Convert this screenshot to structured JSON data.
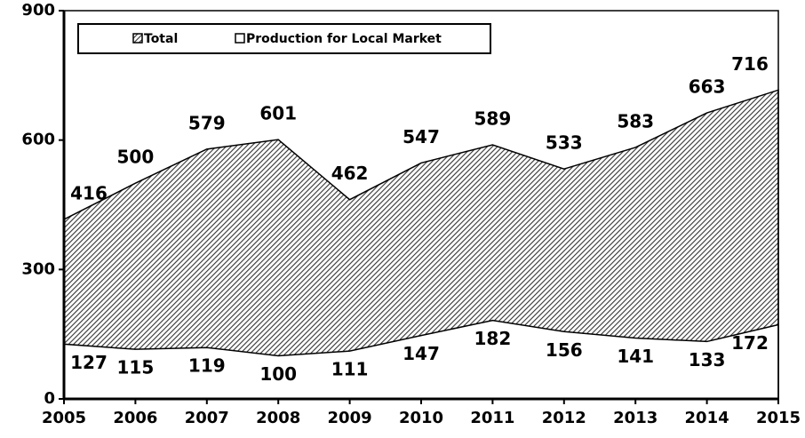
{
  "chart_data": {
    "type": "area",
    "x": [
      2005,
      2006,
      2007,
      2008,
      2009,
      2010,
      2011,
      2012,
      2013,
      2014,
      2015
    ],
    "series": [
      {
        "name": "Total",
        "color": "#333333",
        "values": [
          416,
          500,
          579,
          601,
          462,
          547,
          589,
          533,
          583,
          663,
          716
        ]
      },
      {
        "name": "Production for Local Market",
        "color": "#ffffff",
        "values": [
          127,
          115,
          119,
          100,
          111,
          147,
          182,
          156,
          141,
          133,
          172
        ]
      }
    ],
    "xlim": [
      2005,
      2015
    ],
    "xticks": [
      2005,
      2006,
      2007,
      2008,
      2009,
      2010,
      2011,
      2012,
      2013,
      2014,
      2015
    ],
    "ylim": [
      0,
      900
    ],
    "yticks": [
      0,
      300,
      600,
      900
    ],
    "grid": false,
    "legend": "top-left"
  }
}
